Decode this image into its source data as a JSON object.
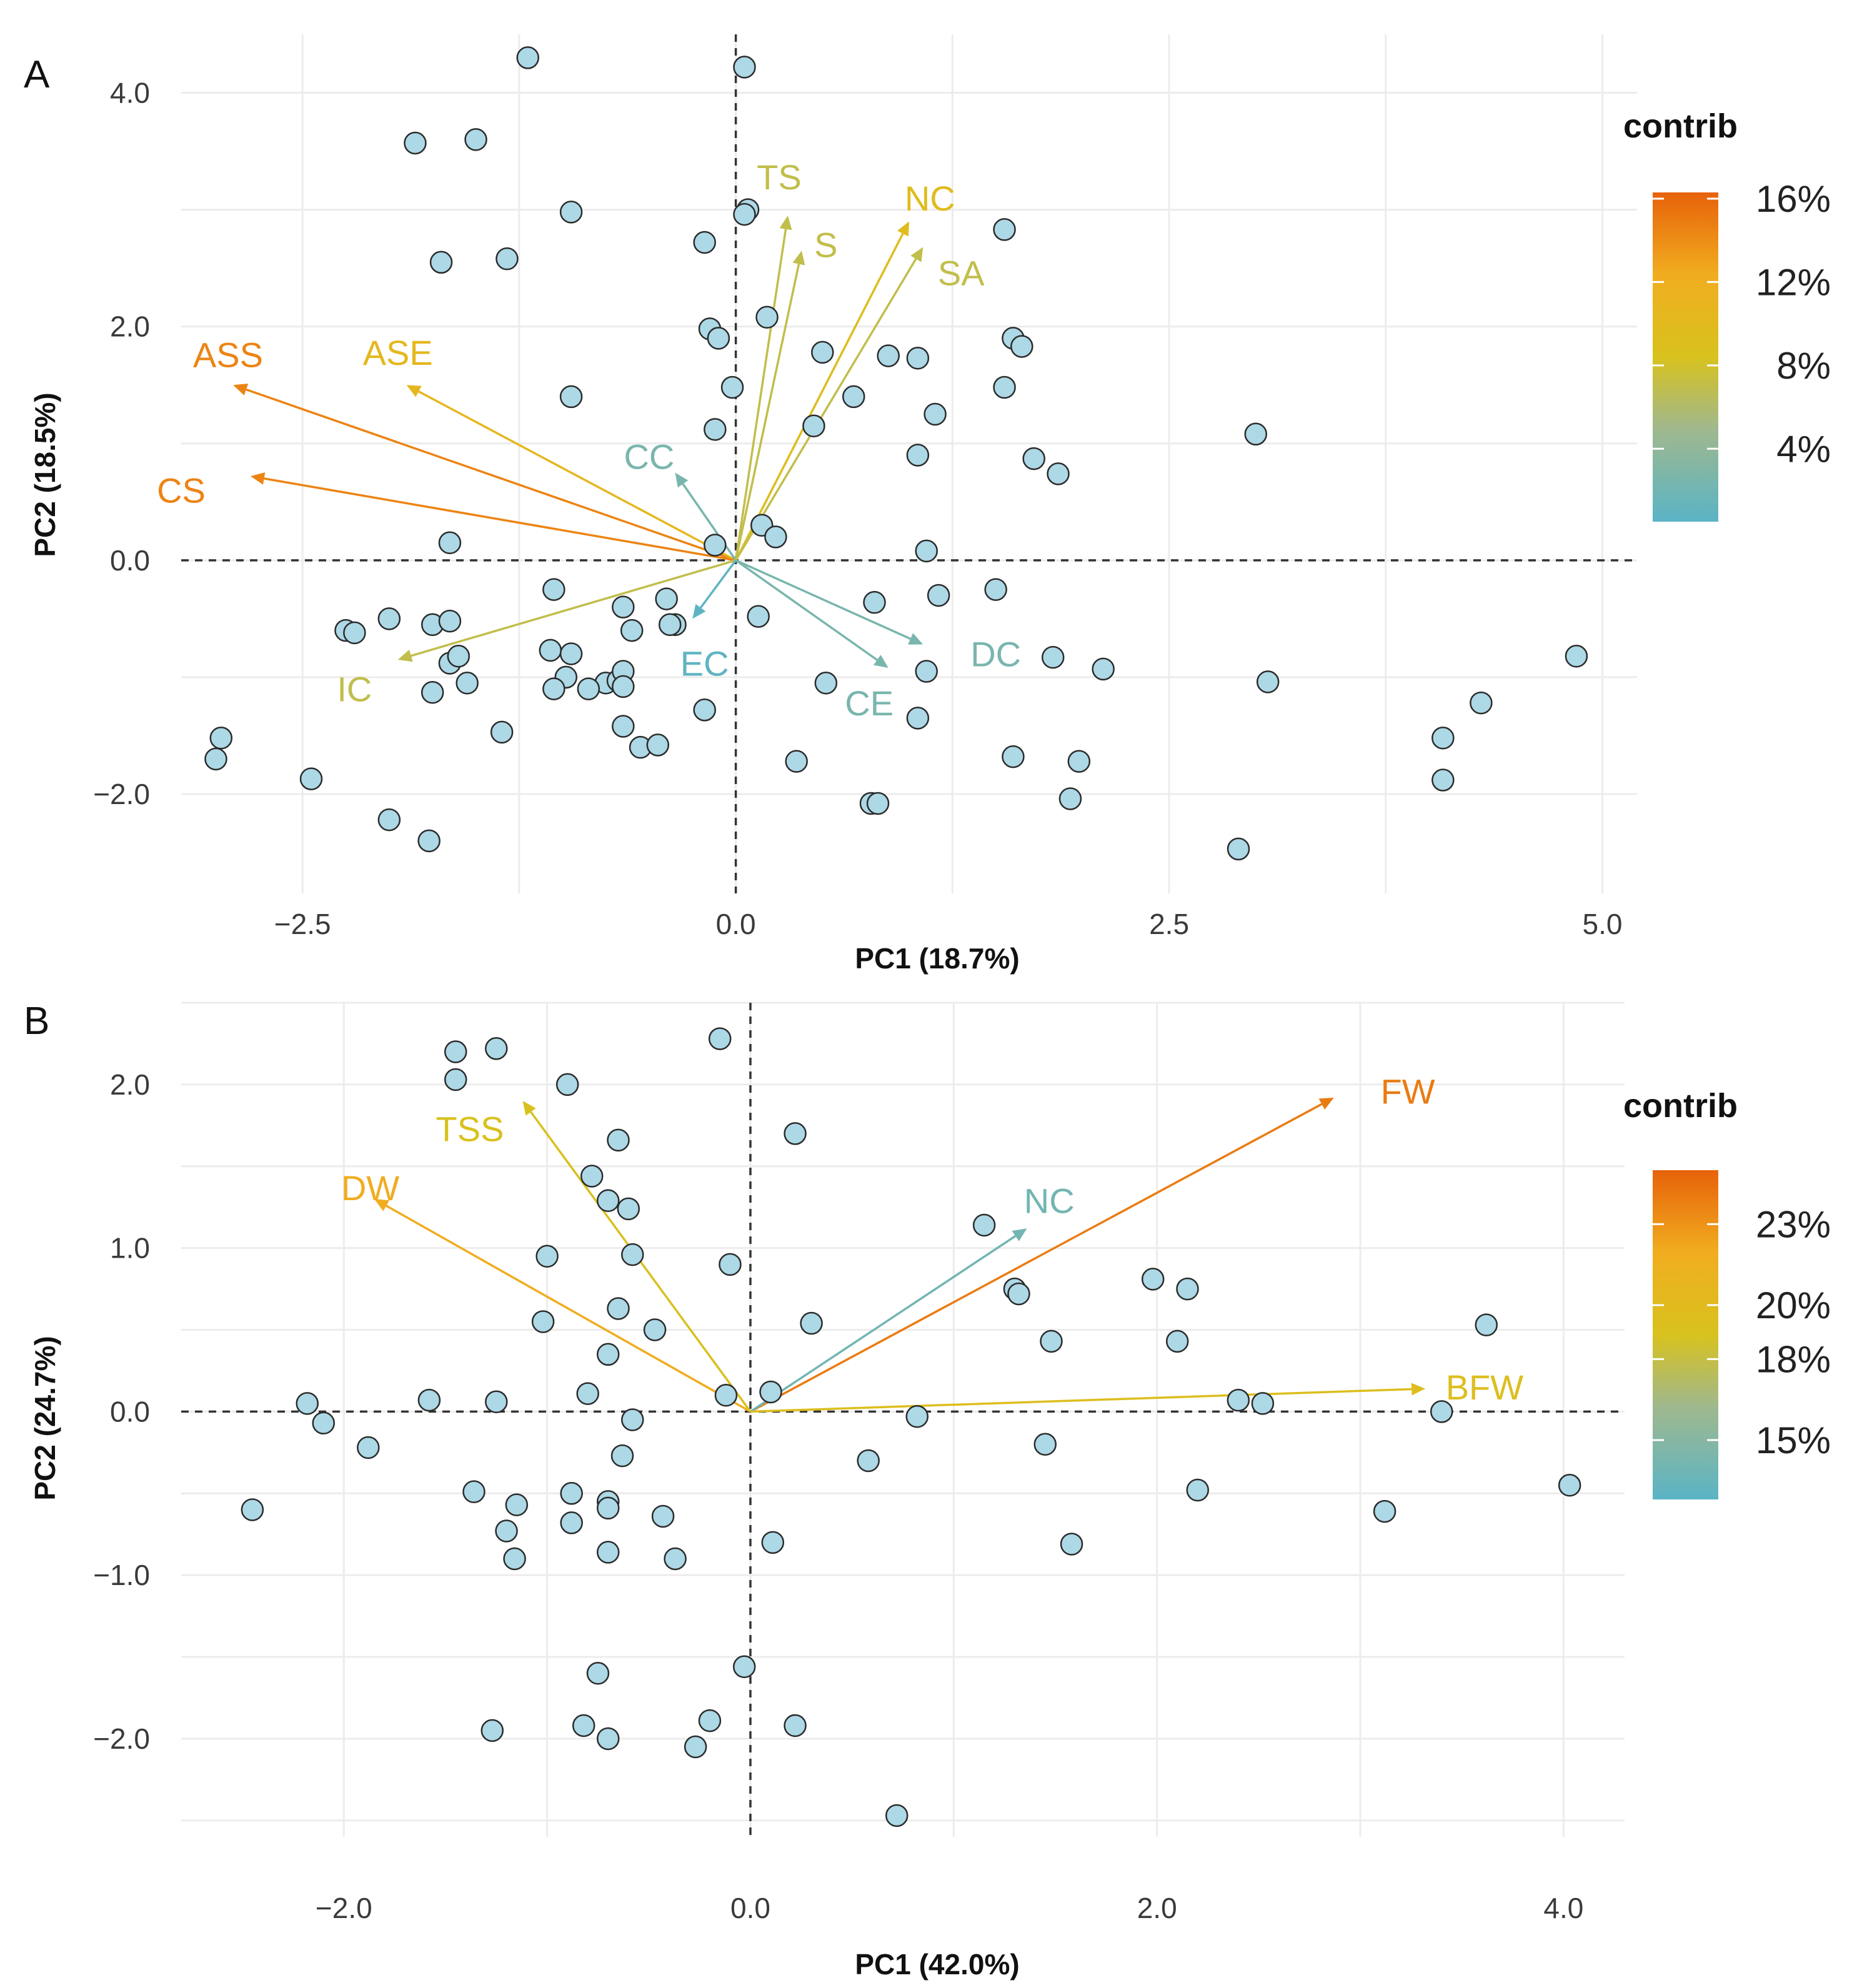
{
  "colors": {
    "point_fill": "#add8e6",
    "point_stroke": "#2b2b2b",
    "grid": "#ececec",
    "zero_line": "#333333",
    "gradient": [
      "#5ab4c6",
      "#9fb88e",
      "#d8c21e",
      "#f1ad1f",
      "#e7620a"
    ]
  },
  "chart_data": [
    {
      "type": "scatter",
      "subtype": "pca-biplot",
      "panel_label": "A",
      "xlabel": "PC1 (18.7%)",
      "ylabel": "PC2 (18.5%)",
      "xlim": [
        -3.2,
        5.2
      ],
      "ylim": [
        -2.85,
        4.5
      ],
      "xticks": [
        -2.5,
        0.0,
        2.5,
        5.0
      ],
      "xtick_labels": [
        "−2.5",
        "0.0",
        "2.5",
        "5.0"
      ],
      "yticks": [
        4.0,
        2.0,
        0.0,
        -2.0
      ],
      "ytick_labels": [
        "4.0",
        "2.0",
        "0.0",
        "−2.0"
      ],
      "grid": true,
      "legend": {
        "title": "contrib",
        "placement": "right",
        "range": [
          0.5,
          16.3
        ],
        "ticks": [
          16,
          12,
          8,
          4
        ],
        "tick_labels": [
          "16%",
          "12%",
          "8%",
          "4%"
        ]
      },
      "points": [
        [
          -1.2,
          4.3
        ],
        [
          0.05,
          4.22
        ],
        [
          -1.85,
          3.57
        ],
        [
          -1.5,
          3.6
        ],
        [
          -0.95,
          2.98
        ],
        [
          -1.7,
          2.55
        ],
        [
          -1.32,
          2.58
        ],
        [
          -0.18,
          2.72
        ],
        [
          0.07,
          3.0
        ],
        [
          0.05,
          2.96
        ],
        [
          -0.15,
          1.98
        ],
        [
          -0.1,
          1.9
        ],
        [
          0.18,
          2.08
        ],
        [
          -0.02,
          1.48
        ],
        [
          -0.95,
          1.4
        ],
        [
          -0.12,
          1.12
        ],
        [
          0.5,
          1.78
        ],
        [
          0.88,
          1.75
        ],
        [
          1.05,
          1.73
        ],
        [
          1.6,
          1.9
        ],
        [
          1.65,
          1.83
        ],
        [
          1.55,
          1.48
        ],
        [
          0.68,
          1.4
        ],
        [
          1.15,
          1.25
        ],
        [
          0.45,
          1.15
        ],
        [
          1.05,
          0.9
        ],
        [
          1.72,
          0.87
        ],
        [
          1.86,
          0.74
        ],
        [
          3.0,
          1.08
        ],
        [
          1.55,
          2.83
        ],
        [
          -1.65,
          0.15
        ],
        [
          -0.12,
          0.13
        ],
        [
          0.15,
          0.3
        ],
        [
          0.23,
          0.2
        ],
        [
          1.1,
          0.08
        ],
        [
          -1.05,
          -0.25
        ],
        [
          -0.4,
          -0.33
        ],
        [
          0.8,
          -0.36
        ],
        [
          1.17,
          -0.3
        ],
        [
          1.5,
          -0.25
        ],
        [
          -2.25,
          -0.6
        ],
        [
          -2.2,
          -0.62
        ],
        [
          -2.0,
          -0.5
        ],
        [
          -1.75,
          -0.55
        ],
        [
          -1.65,
          -0.52
        ],
        [
          -1.65,
          -0.88
        ],
        [
          -1.6,
          -0.82
        ],
        [
          -1.55,
          -1.05
        ],
        [
          -1.75,
          -1.13
        ],
        [
          -0.65,
          -0.4
        ],
        [
          -0.35,
          -0.55
        ],
        [
          -0.38,
          -0.55
        ],
        [
          -0.6,
          -0.6
        ],
        [
          0.13,
          -0.48
        ],
        [
          -1.07,
          -0.77
        ],
        [
          -0.95,
          -0.8
        ],
        [
          -0.98,
          -1.0
        ],
        [
          -0.75,
          -1.05
        ],
        [
          -0.68,
          -1.03
        ],
        [
          -0.65,
          -0.95
        ],
        [
          -1.05,
          -1.1
        ],
        [
          -0.85,
          -1.1
        ],
        [
          -0.65,
          -1.08
        ],
        [
          -0.65,
          -1.42
        ],
        [
          -0.55,
          -1.6
        ],
        [
          -0.45,
          -1.58
        ],
        [
          -0.18,
          -1.28
        ],
        [
          -1.35,
          -1.47
        ],
        [
          0.52,
          -1.05
        ],
        [
          1.1,
          -0.95
        ],
        [
          1.05,
          -1.35
        ],
        [
          1.83,
          -0.83
        ],
        [
          2.12,
          -0.93
        ],
        [
          3.07,
          -1.04
        ],
        [
          0.35,
          -1.72
        ],
        [
          1.6,
          -1.68
        ],
        [
          1.98,
          -1.72
        ],
        [
          -2.97,
          -1.52
        ],
        [
          -3.0,
          -1.7
        ],
        [
          -2.45,
          -1.87
        ],
        [
          -2.0,
          -2.22
        ],
        [
          -1.77,
          -2.4
        ],
        [
          0.78,
          -2.08
        ],
        [
          0.82,
          -2.08
        ],
        [
          1.93,
          -2.04
        ],
        [
          2.9,
          -2.47
        ],
        [
          4.08,
          -1.52
        ],
        [
          4.08,
          -1.88
        ],
        [
          4.3,
          -1.22
        ],
        [
          4.85,
          -0.82
        ]
      ],
      "loadings": [
        {
          "name": "ASS",
          "x": -2.9,
          "y": 1.5,
          "contrib": 14.5,
          "lx": -2.93,
          "ly": 1.76,
          "anchor": "middle"
        },
        {
          "name": "ASE",
          "x": -1.9,
          "y": 1.5,
          "contrib": 10.5,
          "lx": -1.95,
          "ly": 1.78,
          "anchor": "middle"
        },
        {
          "name": "CS",
          "x": -2.8,
          "y": 0.72,
          "contrib": 14.5,
          "lx": -3.2,
          "ly": 0.6,
          "anchor": "middle"
        },
        {
          "name": "CC",
          "x": -0.35,
          "y": 0.75,
          "contrib": 2.5,
          "lx": -0.5,
          "ly": 0.89,
          "anchor": "middle"
        },
        {
          "name": "TS",
          "x": 0.3,
          "y": 2.95,
          "contrib": 7.0,
          "lx": 0.25,
          "ly": 3.28,
          "anchor": "middle"
        },
        {
          "name": "S",
          "x": 0.38,
          "y": 2.65,
          "contrib": 7.0,
          "lx": 0.52,
          "ly": 2.7,
          "anchor": "middle"
        },
        {
          "name": "NC",
          "x": 1.0,
          "y": 2.9,
          "contrib": 9.5,
          "lx": 1.12,
          "ly": 3.1,
          "anchor": "middle"
        },
        {
          "name": "SA",
          "x": 1.08,
          "y": 2.68,
          "contrib": 7.0,
          "lx": 1.3,
          "ly": 2.46,
          "anchor": "middle"
        },
        {
          "name": "IC",
          "x": -1.95,
          "y": -0.85,
          "contrib": 7.0,
          "lx": -2.2,
          "ly": -1.1,
          "anchor": "middle"
        },
        {
          "name": "EC",
          "x": -0.25,
          "y": -0.5,
          "contrib": 0.8,
          "lx": -0.18,
          "ly": -0.88,
          "anchor": "middle"
        },
        {
          "name": "CE",
          "x": 0.88,
          "y": -0.92,
          "contrib": 2.5,
          "lx": 0.77,
          "ly": -1.22,
          "anchor": "middle"
        },
        {
          "name": "DC",
          "x": 1.08,
          "y": -0.72,
          "contrib": 2.5,
          "lx": 1.5,
          "ly": -0.8,
          "anchor": "middle"
        }
      ]
    },
    {
      "type": "scatter",
      "subtype": "pca-biplot",
      "panel_label": "B",
      "xlabel": "PC1 (42.0%)",
      "ylabel": "PC2 (24.7%)",
      "xlim": [
        -2.8,
        4.3
      ],
      "ylim": [
        -2.6,
        2.5
      ],
      "xticks": [
        -2.0,
        0.0,
        2.0,
        4.0
      ],
      "xtick_labels": [
        "−2.0",
        "0.0",
        "2.0",
        "4.0"
      ],
      "yticks": [
        2.0,
        1.0,
        0.0,
        -1.0,
        -2.0
      ],
      "ytick_labels": [
        "2.0",
        "1.0",
        "0.0",
        "−1.0",
        "−2.0"
      ],
      "grid": true,
      "legend": {
        "title": "contrib",
        "placement": "right",
        "range": [
          12.8,
          25.0
        ],
        "ticks": [
          23,
          20,
          18,
          15
        ],
        "tick_labels": [
          "23%",
          "20%",
          "18%",
          "15%"
        ]
      },
      "points": [
        [
          -1.45,
          2.2
        ],
        [
          -1.25,
          2.22
        ],
        [
          -1.45,
          2.03
        ],
        [
          -0.9,
          2.0
        ],
        [
          -0.15,
          2.28
        ],
        [
          0.22,
          1.7
        ],
        [
          -0.65,
          1.66
        ],
        [
          -0.78,
          1.44
        ],
        [
          -0.7,
          1.29
        ],
        [
          -0.6,
          1.24
        ],
        [
          -1.0,
          0.95
        ],
        [
          -0.58,
          0.96
        ],
        [
          -0.1,
          0.9
        ],
        [
          -0.65,
          0.63
        ],
        [
          -1.02,
          0.55
        ],
        [
          -0.47,
          0.5
        ],
        [
          0.3,
          0.54
        ],
        [
          -0.7,
          0.35
        ],
        [
          -0.8,
          0.11
        ],
        [
          -0.12,
          0.1
        ],
        [
          0.1,
          0.12
        ],
        [
          -2.18,
          0.05
        ],
        [
          -1.58,
          0.07
        ],
        [
          -1.25,
          0.06
        ],
        [
          -2.1,
          -0.07
        ],
        [
          -1.88,
          -0.22
        ],
        [
          -0.58,
          -0.05
        ],
        [
          -0.63,
          -0.27
        ],
        [
          0.82,
          -0.03
        ],
        [
          0.58,
          -0.3
        ],
        [
          -1.36,
          -0.49
        ],
        [
          -1.15,
          -0.57
        ],
        [
          -0.88,
          -0.5
        ],
        [
          -0.7,
          -0.55
        ],
        [
          -0.7,
          -0.59
        ],
        [
          -0.43,
          -0.64
        ],
        [
          -0.88,
          -0.68
        ],
        [
          -1.2,
          -0.73
        ],
        [
          -1.16,
          -0.9
        ],
        [
          -0.7,
          -0.86
        ],
        [
          -0.37,
          -0.9
        ],
        [
          0.11,
          -0.8
        ],
        [
          1.15,
          1.14
        ],
        [
          1.3,
          0.75
        ],
        [
          1.32,
          0.72
        ],
        [
          1.48,
          0.43
        ],
        [
          1.98,
          0.81
        ],
        [
          2.15,
          0.75
        ],
        [
          2.1,
          0.43
        ],
        [
          2.4,
          0.07
        ],
        [
          2.52,
          0.05
        ],
        [
          3.4,
          0.0
        ],
        [
          3.62,
          0.53
        ],
        [
          1.45,
          -0.2
        ],
        [
          2.2,
          -0.48
        ],
        [
          1.58,
          -0.81
        ],
        [
          3.12,
          -0.61
        ],
        [
          4.03,
          -0.45
        ],
        [
          -2.45,
          -0.6
        ],
        [
          -0.03,
          -1.56
        ],
        [
          -0.75,
          -1.6
        ],
        [
          -1.27,
          -1.95
        ],
        [
          -0.82,
          -1.92
        ],
        [
          -0.7,
          -2.0
        ],
        [
          -0.2,
          -1.89
        ],
        [
          -0.27,
          -2.05
        ],
        [
          0.22,
          -1.92
        ],
        [
          0.72,
          -2.47
        ]
      ],
      "loadings": [
        {
          "name": "FW",
          "x": 2.87,
          "y": 1.92,
          "contrib": 24.0,
          "lx": 3.1,
          "ly": 1.96,
          "anchor": "start"
        },
        {
          "name": "DW",
          "x": -1.85,
          "y": 1.3,
          "contrib": 22.0,
          "lx": -1.87,
          "ly": 1.37,
          "anchor": "middle"
        },
        {
          "name": "TSS",
          "x": -1.12,
          "y": 1.9,
          "contrib": 19.0,
          "lx": -1.38,
          "ly": 1.73,
          "anchor": "middle"
        },
        {
          "name": "NC",
          "x": 1.36,
          "y": 1.12,
          "contrib": 14.0,
          "lx": 1.47,
          "ly": 1.29,
          "anchor": "middle"
        },
        {
          "name": "BFW",
          "x": 3.32,
          "y": 0.14,
          "contrib": 19.5,
          "lx": 3.42,
          "ly": 0.15,
          "anchor": "start"
        }
      ]
    }
  ]
}
